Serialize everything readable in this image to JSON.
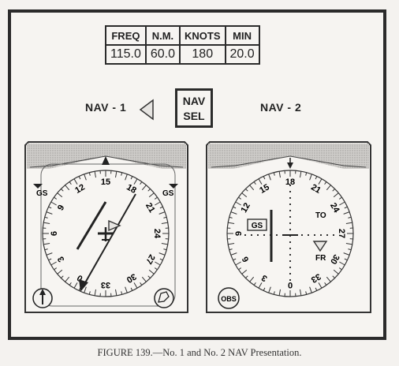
{
  "table": {
    "headers": [
      "FREQ",
      "N.M.",
      "KNOTS",
      "MIN"
    ],
    "values": [
      "115.0",
      "60.0",
      "180",
      "20.0"
    ]
  },
  "nav1_label": "NAV - 1",
  "nav2_label": "NAV - 2",
  "nav_sel": [
    "NAV",
    "SEL"
  ],
  "nav1": {
    "gs_left": "GS",
    "gs_right": "GS",
    "cardinal_labels": [
      "12",
      "15",
      "18",
      "21",
      "24",
      "27",
      "30",
      "33",
      "0",
      "3",
      "6",
      "9"
    ]
  },
  "nav2": {
    "gs_label": "GS",
    "to_label": "TO",
    "fr_label": "FR",
    "obs_label": "OBS",
    "cardinal_labels": [
      "15",
      "18",
      "21",
      "24",
      "27",
      "30",
      "33",
      "0",
      "3",
      "6",
      "9",
      "12"
    ]
  },
  "caption": "FIGURE 139.—No. 1 and No. 2 NAV Presentation."
}
